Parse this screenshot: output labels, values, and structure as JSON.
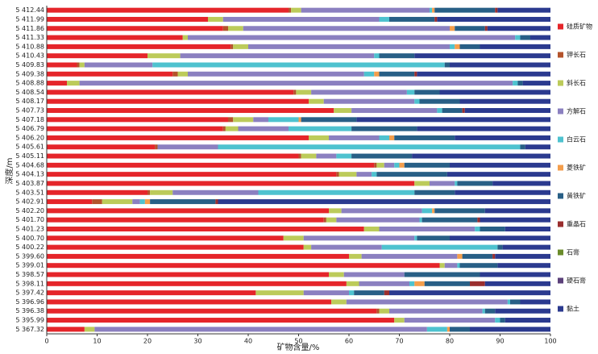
{
  "chart_data": {
    "type": "bar",
    "orientation": "horizontal",
    "stacked": true,
    "xlabel": "矿物含量/%",
    "ylabel": "深度/m",
    "categories": [
      "5 412.44",
      "5 411.99",
      "5 411.86",
      "5 411.33",
      "5 410.88",
      "5 410.43",
      "5 409.83",
      "5 409.38",
      "5 408.88",
      "5 408.54",
      "5 408.17",
      "5 407.73",
      "5 407.18",
      "5 406.79",
      "5 406.20",
      "5 405.61",
      "5 405.11",
      "5 404.68",
      "5 404.13",
      "5 403.87",
      "5 403.51",
      "5 402.91",
      "5 402.20",
      "5 401.70",
      "5 401.23",
      "5 400.70",
      "5 400.22",
      "5 399.60",
      "5 399.01",
      "5 398.57",
      "5 398.11",
      "5 397.42",
      "5 396.96",
      "5 396.38",
      "5 395.99",
      "5 367.32"
    ],
    "series": [
      {
        "name": "硅质矿物",
        "color": "#e5252a",
        "values": [
          48,
          32,
          35,
          27,
          36.5,
          20,
          6,
          25,
          4,
          49,
          52,
          57,
          36,
          35,
          52,
          21.5,
          50,
          65,
          57.5,
          73,
          20,
          9,
          56,
          55,
          63,
          47,
          51,
          60,
          78,
          56,
          59.5,
          41.5,
          56.5,
          65.5,
          69,
          7.5
        ]
      },
      {
        "name": "钾长石",
        "color": "#b4532b",
        "values": [
          0.5,
          0,
          1,
          0,
          0.5,
          0,
          0.5,
          1,
          0,
          0.5,
          0,
          0,
          1,
          0.5,
          0,
          0.5,
          0.5,
          0.5,
          0.5,
          0,
          0.5,
          2,
          0,
          0.5,
          0,
          0,
          0,
          0,
          0,
          0,
          0,
          0,
          0,
          0.5,
          0,
          0
        ]
      },
      {
        "name": "斜长石",
        "color": "#bccb5a",
        "values": [
          2,
          3,
          3,
          1,
          3,
          6.5,
          1,
          2,
          2.5,
          3,
          3,
          3.5,
          4,
          2.5,
          4,
          0,
          3,
          1.5,
          3.5,
          3,
          4.5,
          6,
          2.5,
          2,
          3,
          4,
          1.5,
          2.5,
          1,
          3,
          2.5,
          9.5,
          3,
          2,
          2,
          2
        ]
      },
      {
        "name": "方解石",
        "color": "#8b80c0",
        "values": [
          25.5,
          31,
          41,
          65,
          40,
          38.5,
          13.5,
          35,
          86,
          19,
          18,
          17,
          3,
          10,
          10,
          12,
          4,
          2,
          3,
          5,
          17,
          1.5,
          16,
          16.5,
          19,
          22,
          14,
          19,
          2.5,
          12,
          10,
          9,
          32,
          18.5,
          18,
          66
        ]
      },
      {
        "name": "白云石",
        "color": "#4ec2cf",
        "values": [
          0.5,
          2,
          0,
          1,
          1,
          1,
          58,
          2,
          1,
          1.5,
          1,
          1,
          6,
          12.5,
          2,
          60,
          3,
          1,
          1,
          0.5,
          31,
          1,
          2,
          0.5,
          1,
          0.5,
          23,
          0,
          0.5,
          0,
          1,
          1,
          0.5,
          0.5,
          1,
          4
        ]
      },
      {
        "name": "菱铁矿",
        "color": "#f49e4c",
        "values": [
          0.5,
          0,
          1,
          0,
          1,
          0,
          0,
          1,
          0,
          0,
          0,
          0,
          0.5,
          0,
          1,
          0,
          0,
          1,
          0,
          0,
          0,
          1,
          0.5,
          0,
          0,
          0,
          0,
          1,
          0,
          0,
          2,
          0,
          0,
          0,
          0,
          0.5
        ]
      },
      {
        "name": "黄铁矿",
        "color": "#285f86",
        "values": [
          12,
          9,
          6,
          2,
          4,
          7,
          1,
          7,
          1,
          5,
          8,
          4,
          11,
          13,
          12,
          1,
          12,
          9,
          14,
          7,
          8,
          13,
          10,
          11,
          5,
          6.5,
          1,
          6,
          7.5,
          15,
          9,
          6,
          2,
          2,
          1,
          4
        ]
      },
      {
        "name": "重晶石",
        "color": "#9a2e2e",
        "values": [
          0.5,
          0.5,
          0.5,
          0,
          0,
          0,
          0,
          0.5,
          0,
          0,
          0,
          0.5,
          0,
          0,
          0,
          0,
          0,
          0,
          0,
          0,
          0,
          0.5,
          0,
          0.5,
          0,
          0,
          0,
          0.5,
          0,
          0,
          3,
          1,
          0,
          0,
          0,
          0
        ]
      },
      {
        "name": "石膏",
        "color": "#6a8b2a",
        "values": [
          0,
          0,
          0,
          0,
          0,
          0,
          0,
          0,
          0,
          0,
          0,
          0,
          0,
          0,
          0,
          0,
          0,
          0,
          0,
          0,
          0,
          0,
          0,
          0,
          0,
          0,
          0,
          0,
          0,
          0,
          0,
          0,
          0,
          0,
          0,
          0
        ]
      },
      {
        "name": "硬石膏",
        "color": "#5b407a",
        "values": [
          0,
          0,
          0,
          0,
          0,
          0,
          0,
          0,
          0,
          0,
          0,
          0,
          0,
          0,
          0,
          0,
          0,
          0,
          0,
          0,
          0,
          0,
          0,
          0,
          0,
          0,
          0,
          0,
          0,
          0,
          0,
          0,
          0,
          0,
          0,
          0
        ]
      },
      {
        "name": "黏土",
        "color": "#2b3a8f",
        "values": [
          10.5,
          22.5,
          12.5,
          4,
          14,
          27,
          20,
          26.5,
          5.5,
          22,
          18,
          17,
          38.5,
          26.5,
          19,
          5,
          27.5,
          20,
          20.5,
          11.5,
          19,
          66,
          13,
          14,
          9,
          20,
          9.5,
          11,
          10.5,
          14,
          13,
          32,
          6,
          11,
          9,
          16
        ]
      }
    ],
    "xlim": [
      0,
      100
    ],
    "xticks": [
      0,
      10,
      20,
      30,
      40,
      50,
      60,
      70,
      80,
      90,
      100
    ],
    "grid": false,
    "legend": "right"
  }
}
